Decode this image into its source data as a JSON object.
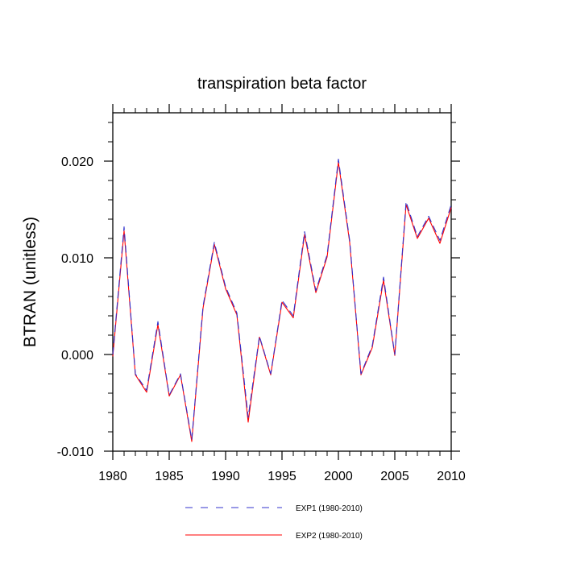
{
  "chart_data": {
    "type": "line",
    "title": "transpiration beta factor",
    "ylabel": "BTRAN  (unitless)",
    "xlabel": "",
    "xlim": [
      1980,
      2010
    ],
    "ylim": [
      -0.01,
      0.025
    ],
    "x_ticks": [
      1980,
      1985,
      1990,
      1995,
      2000,
      2005,
      2010
    ],
    "x_tick_labels": [
      "1980",
      "1985",
      "1990",
      "1995",
      "2000",
      "2005",
      "2010"
    ],
    "x_minor_step": 1,
    "y_ticks": [
      -0.01,
      0.0,
      0.01,
      0.02
    ],
    "y_tick_labels": [
      "-0.010",
      "0.000",
      "0.010",
      "0.020"
    ],
    "y_minor_step": 0.002,
    "grid": false,
    "legend_position": "bottom-center",
    "x": [
      1980,
      1981,
      1982,
      1983,
      1984,
      1985,
      1986,
      1987,
      1988,
      1989,
      1990,
      1991,
      1992,
      1993,
      1994,
      1995,
      1996,
      1997,
      1998,
      1999,
      2000,
      2001,
      2002,
      2003,
      2004,
      2005,
      2006,
      2007,
      2008,
      2009,
      2010
    ],
    "series": [
      {
        "name": "EXP1 (1980-2010)",
        "color": "#3333cc",
        "dash": "dashed",
        "values": [
          0.0,
          0.0132,
          -0.002,
          -0.0037,
          0.0034,
          -0.0042,
          -0.002,
          -0.0088,
          0.005,
          0.0116,
          0.007,
          0.0043,
          -0.0065,
          0.0019,
          -0.002,
          0.0056,
          0.004,
          0.0127,
          0.0066,
          0.0103,
          0.0202,
          0.0118,
          -0.002,
          0.0009,
          0.008,
          0.0,
          0.0158,
          0.0122,
          0.0143,
          0.0118,
          0.0155
        ]
      },
      {
        "name": "EXP2 (1980-2010)",
        "color": "#ff0000",
        "dash": "solid",
        "values": [
          -0.0002,
          0.0128,
          -0.0021,
          -0.0039,
          0.0031,
          -0.0043,
          -0.0021,
          -0.009,
          0.0048,
          0.0114,
          0.0068,
          0.0041,
          -0.007,
          0.0018,
          -0.0021,
          0.0054,
          0.0038,
          0.0124,
          0.0064,
          0.0101,
          0.0199,
          0.0116,
          -0.0021,
          0.0007,
          0.0077,
          -0.0001,
          0.0155,
          0.012,
          0.0141,
          0.0115,
          0.0152
        ]
      }
    ]
  }
}
